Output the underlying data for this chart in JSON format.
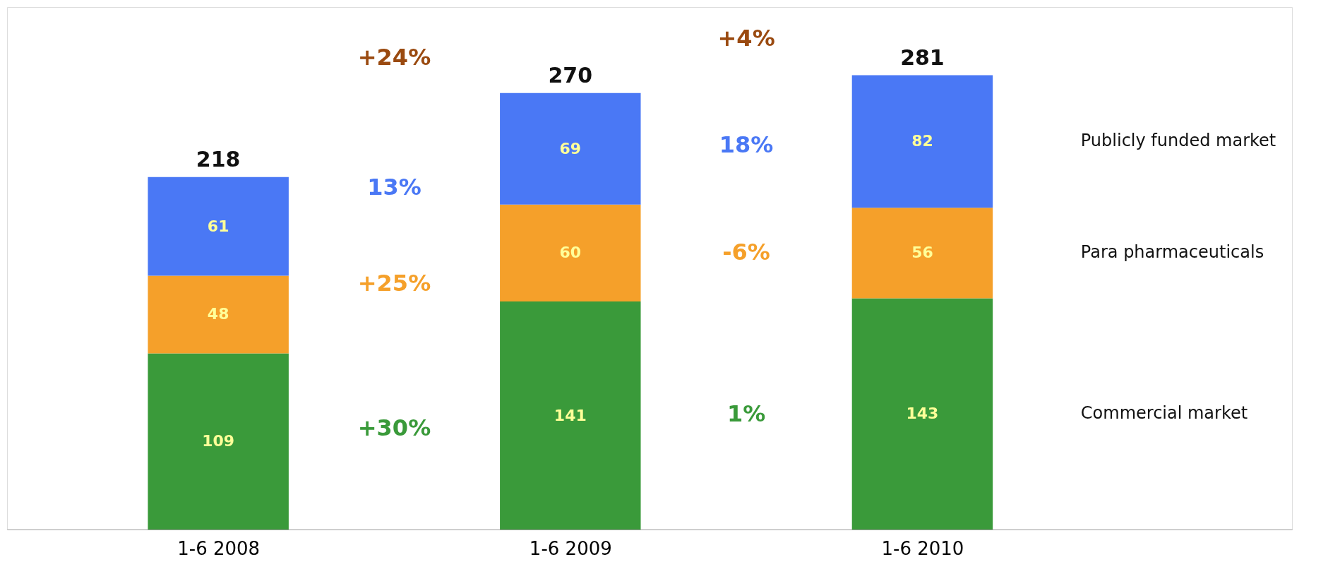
{
  "chart_data": {
    "type": "bar",
    "stacked": true,
    "data_labels": true,
    "legend": "right",
    "grid": false,
    "tick_labels": "x",
    "categories": [
      "1-6 2008",
      "1-6 2009",
      "1-6 2010"
    ],
    "series": [
      {
        "name": "Commercial market",
        "color": "#3a9a3a",
        "values": [
          109,
          141,
          143
        ]
      },
      {
        "name": "Para pharmaceuticals",
        "color": "#f5a02a",
        "values": [
          48,
          60,
          56
        ]
      },
      {
        "name": "Publicly funded market",
        "color": "#4a78f5",
        "values": [
          61,
          69,
          82
        ]
      }
    ],
    "totals": [
      "218",
      "270",
      "281"
    ],
    "annotations": [
      "+24%",
      "+4%",
      "13%",
      "+25%",
      "+30%",
      "18%",
      "-6%",
      "1%"
    ]
  }
}
